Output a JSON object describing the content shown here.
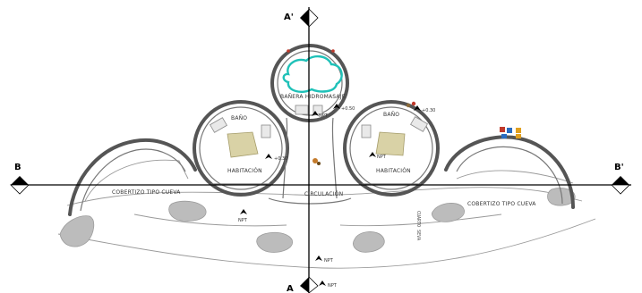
{
  "sections": {
    "a_top": "A'",
    "a_bottom": "A",
    "b_left": "B",
    "b_right": "B'"
  },
  "rooms": {
    "jacuzzi": "BAÑERA HIDROMASAJE",
    "bath_left": "BAÑO",
    "bath_right": "BAÑO",
    "bedroom_left": "HABITACIÓN",
    "bedroom_right": "HABITACIÓN",
    "cave_left": "COBERTIZO TIPO CUEVA",
    "cave_right": "COBERTIZO TIPO CUEVA",
    "circulation": "CIRCULACIÓN",
    "vertical_note": "CUARTO SEVA"
  },
  "levels": {
    "jacuzzi": "+0.50",
    "bath_left": "+0.30",
    "bath_right": "+0.30",
    "bedroom_left": "NPT",
    "bedroom_right": "NPT",
    "entry": "NPT",
    "bottom_a": "NPT",
    "bottom_b": "NPT"
  },
  "colors": {
    "wall": "#555555",
    "water": "#1fc1b8",
    "rock": "#bcbcbc",
    "bed": "#d9d2a6",
    "axis": "#000000",
    "accent_red": "#c0392b"
  },
  "icons": {
    "section_marker": "section-marker-icon",
    "north_arrow": "north-arrow-icon",
    "plant": "plant-icon",
    "flag": "flag-icon"
  }
}
